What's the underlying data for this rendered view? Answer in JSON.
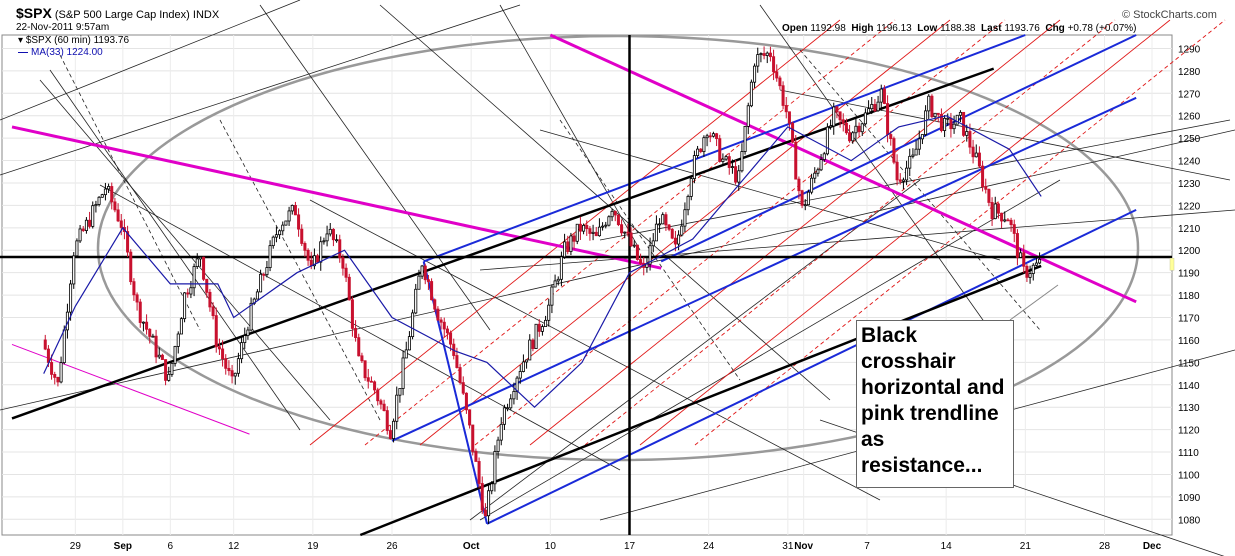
{
  "header": {
    "symbol": "$SPX",
    "name": "(S&P 500 Large Cap Index)",
    "exchange": "INDX",
    "datetime": "22-Nov-2011 9:57am",
    "price_legend": "$SPX (60 min) 1193.76",
    "ma_legend": "MA(33) 1224.00",
    "open_label": "Open",
    "open": "1192.98",
    "high_label": "High",
    "high": "1196.13",
    "low_label": "Low",
    "low": "1188.38",
    "last_label": "Last",
    "last": "1193.76",
    "chg_label": "Chg",
    "chg": "+0.78 (+0.07%)",
    "brand": "© StockCharts.com"
  },
  "annotation": "Black crosshair horizontal and pink trendline as resistance...",
  "colors": {
    "up": "#000000",
    "down": "#c8102e",
    "ma": "#1a1aa8",
    "magenta": "#e000c8",
    "blue": "#1a2ad8",
    "red": "#e01818",
    "gray": "#999999"
  },
  "chart_data": {
    "type": "candlestick",
    "interval": "60 min",
    "ylim": [
      1073,
      1296
    ],
    "y_ticks": [
      1080,
      1090,
      1100,
      1110,
      1120,
      1130,
      1140,
      1150,
      1160,
      1170,
      1180,
      1190,
      1200,
      1210,
      1220,
      1230,
      1240,
      1250,
      1260,
      1270,
      1280,
      1290
    ],
    "x_ticks": [
      "29",
      "Sep",
      "6",
      "12",
      "19",
      "26",
      "Oct",
      "10",
      "17",
      "24",
      "31",
      "Nov",
      "7",
      "14",
      "21",
      "28",
      "Dec"
    ],
    "price_path": [
      {
        "d": "2011-08-25",
        "v": 1160
      },
      {
        "d": "2011-08-26",
        "v": 1140
      },
      {
        "d": "2011-08-29",
        "v": 1200
      },
      {
        "d": "2011-08-31",
        "v": 1228
      },
      {
        "d": "2011-09-01",
        "v": 1212
      },
      {
        "d": "2011-09-02",
        "v": 1175
      },
      {
        "d": "2011-09-06",
        "v": 1142
      },
      {
        "d": "2011-09-07",
        "v": 1180
      },
      {
        "d": "2011-09-08",
        "v": 1198
      },
      {
        "d": "2011-09-09",
        "v": 1160
      },
      {
        "d": "2011-09-12",
        "v": 1140
      },
      {
        "d": "2011-09-13",
        "v": 1168
      },
      {
        "d": "2011-09-14",
        "v": 1190
      },
      {
        "d": "2011-09-15",
        "v": 1212
      },
      {
        "d": "2011-09-16",
        "v": 1218
      },
      {
        "d": "2011-09-19",
        "v": 1190
      },
      {
        "d": "2011-09-20",
        "v": 1210
      },
      {
        "d": "2011-09-21",
        "v": 1195
      },
      {
        "d": "2011-09-22",
        "v": 1150
      },
      {
        "d": "2011-09-23",
        "v": 1138
      },
      {
        "d": "2011-09-26",
        "v": 1120
      },
      {
        "d": "2011-09-27",
        "v": 1155
      },
      {
        "d": "2011-09-28",
        "v": 1195
      },
      {
        "d": "2011-09-29",
        "v": 1172
      },
      {
        "d": "2011-09-30",
        "v": 1155
      },
      {
        "d": "2011-10-03",
        "v": 1120
      },
      {
        "d": "2011-10-04",
        "v": 1080
      },
      {
        "d": "2011-10-05",
        "v": 1125
      },
      {
        "d": "2011-10-06",
        "v": 1145
      },
      {
        "d": "2011-10-07",
        "v": 1160
      },
      {
        "d": "2011-10-10",
        "v": 1175
      },
      {
        "d": "2011-10-11",
        "v": 1200
      },
      {
        "d": "2011-10-12",
        "v": 1210
      },
      {
        "d": "2011-10-13",
        "v": 1205
      },
      {
        "d": "2011-10-14",
        "v": 1220
      },
      {
        "d": "2011-10-17",
        "v": 1205
      },
      {
        "d": "2011-10-18",
        "v": 1190
      },
      {
        "d": "2011-10-19",
        "v": 1215
      },
      {
        "d": "2011-10-20",
        "v": 1200
      },
      {
        "d": "2011-10-21",
        "v": 1235
      },
      {
        "d": "2011-10-24",
        "v": 1255
      },
      {
        "d": "2011-10-25",
        "v": 1240
      },
      {
        "d": "2011-10-26",
        "v": 1232
      },
      {
        "d": "2011-10-27",
        "v": 1285
      },
      {
        "d": "2011-10-28",
        "v": 1288
      },
      {
        "d": "2011-10-31",
        "v": 1262
      },
      {
        "d": "2011-11-01",
        "v": 1218
      },
      {
        "d": "2011-11-02",
        "v": 1238
      },
      {
        "d": "2011-11-03",
        "v": 1260
      },
      {
        "d": "2011-11-04",
        "v": 1252
      },
      {
        "d": "2011-11-07",
        "v": 1260
      },
      {
        "d": "2011-11-08",
        "v": 1270
      },
      {
        "d": "2011-11-09",
        "v": 1232
      },
      {
        "d": "2011-11-10",
        "v": 1240
      },
      {
        "d": "2011-11-11",
        "v": 1265
      },
      {
        "d": "2011-11-14",
        "v": 1255
      },
      {
        "d": "2011-11-15",
        "v": 1258
      },
      {
        "d": "2011-11-16",
        "v": 1240
      },
      {
        "d": "2011-11-17",
        "v": 1218
      },
      {
        "d": "2011-11-18",
        "v": 1215
      },
      {
        "d": "2011-11-21",
        "v": 1190
      },
      {
        "d": "2011-11-22",
        "v": 1193.76
      }
    ],
    "ma_path": [
      {
        "d": "2011-08-25",
        "v": 1145
      },
      {
        "d": "2011-08-29",
        "v": 1175
      },
      {
        "d": "2011-09-01",
        "v": 1210
      },
      {
        "d": "2011-09-06",
        "v": 1185
      },
      {
        "d": "2011-09-09",
        "v": 1185
      },
      {
        "d": "2011-09-12",
        "v": 1170
      },
      {
        "d": "2011-09-16",
        "v": 1190
      },
      {
        "d": "2011-09-21",
        "v": 1200
      },
      {
        "d": "2011-09-26",
        "v": 1170
      },
      {
        "d": "2011-09-30",
        "v": 1155
      },
      {
        "d": "2011-10-04",
        "v": 1150
      },
      {
        "d": "2011-10-07",
        "v": 1130
      },
      {
        "d": "2011-10-12",
        "v": 1150
      },
      {
        "d": "2011-10-17",
        "v": 1190
      },
      {
        "d": "2011-10-21",
        "v": 1205
      },
      {
        "d": "2011-10-26",
        "v": 1230
      },
      {
        "d": "2011-10-31",
        "v": 1255
      },
      {
        "d": "2011-11-04",
        "v": 1240
      },
      {
        "d": "2011-11-09",
        "v": 1255
      },
      {
        "d": "2011-11-14",
        "v": 1260
      },
      {
        "d": "2011-11-18",
        "v": 1245
      },
      {
        "d": "2011-11-22",
        "v": 1224
      }
    ],
    "horizontal_levels": [
      1197
    ],
    "crosshair_vertical": "2011-10-17",
    "trendlines": [
      {
        "name": "magenta-resistance-1",
        "color": "magenta",
        "d1": "2011-08-23",
        "v1": 1255,
        "d2": "2011-10-19",
        "v2": 1192
      },
      {
        "name": "magenta-resistance-2",
        "color": "magenta",
        "d1": "2011-10-10",
        "v1": 1296,
        "d2": "2011-11-30",
        "v2": 1177
      },
      {
        "name": "magenta-thin",
        "color": "magenta",
        "d1": "2011-08-23",
        "v1": 1158,
        "d2": "2011-09-13",
        "v2": 1118
      },
      {
        "name": "blue-channel-upper",
        "color": "blue",
        "d1": "2011-09-28",
        "v1": 1195,
        "d2": "2011-11-21",
        "v2": 1296
      },
      {
        "name": "blue-channel-lower",
        "color": "blue",
        "d1": "2011-09-26",
        "v1": 1115,
        "d2": "2011-11-30",
        "v2": 1268
      },
      {
        "name": "blue-channel-3",
        "color": "blue",
        "d1": "2011-10-04",
        "v1": 1078,
        "d2": "2011-11-30",
        "v2": 1218
      },
      {
        "name": "blue-drop",
        "color": "blue",
        "d1": "2011-09-28",
        "v1": 1195,
        "d2": "2011-10-04",
        "v2": 1078
      },
      {
        "name": "blue-upper-channel-2",
        "color": "blue",
        "d1": "2011-10-19",
        "v1": 1195,
        "d2": "2011-11-30",
        "v2": 1296
      },
      {
        "name": "black-thick-1",
        "color": "black",
        "d1": "2011-08-23",
        "v1": 1125,
        "d2": "2011-11-17",
        "v2": 1281
      },
      {
        "name": "black-thick-2",
        "color": "black",
        "d1": "2011-09-22",
        "v1": 1073,
        "d2": "2011-11-22",
        "v2": 1193
      }
    ]
  }
}
